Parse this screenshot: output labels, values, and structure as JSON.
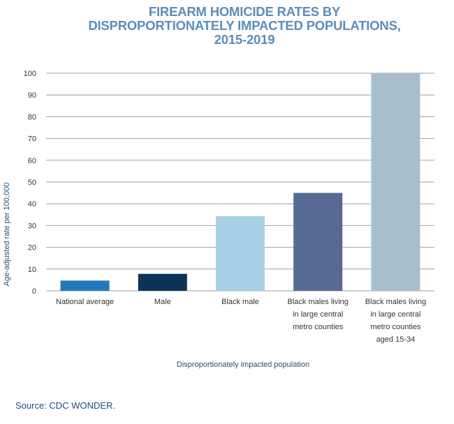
{
  "title_lines": [
    "FIREARM HOMICIDE RATES BY",
    "DISPROPORTIONATELY IMPACTED POPULATIONS,",
    "2015-2019"
  ],
  "source": "Source: CDC WONDER.",
  "colors": {
    "title": "#5b8db8",
    "axis_label": "#1f4e79",
    "grid": "#9e9e9e",
    "tick_text": "#333333"
  },
  "chart_data": {
    "type": "bar",
    "title": "FIREARM HOMICIDE RATES BY DISPROPORTIONATELY IMPACTED POPULATIONS, 2015-2019",
    "xlabel": "Disproportionately impacted population",
    "ylabel": "Age-adjusted rate per 100,000",
    "ylim": [
      0,
      100
    ],
    "yticks": [
      0,
      10,
      20,
      30,
      40,
      50,
      60,
      70,
      80,
      90,
      100
    ],
    "grid": true,
    "categories": [
      [
        "National average"
      ],
      [
        "Male"
      ],
      [
        "Black male"
      ],
      [
        "Black males living",
        "in large central",
        "metro counties"
      ],
      [
        "Black males living",
        "in large central",
        "metro counties",
        "aged 15-34"
      ]
    ],
    "values": [
      4.7,
      7.8,
      34.3,
      45,
      100
    ],
    "bar_colors": [
      "#2479bd",
      "#0d3357",
      "#a8d1e8",
      "#566a93",
      "#a7bfcd"
    ]
  }
}
